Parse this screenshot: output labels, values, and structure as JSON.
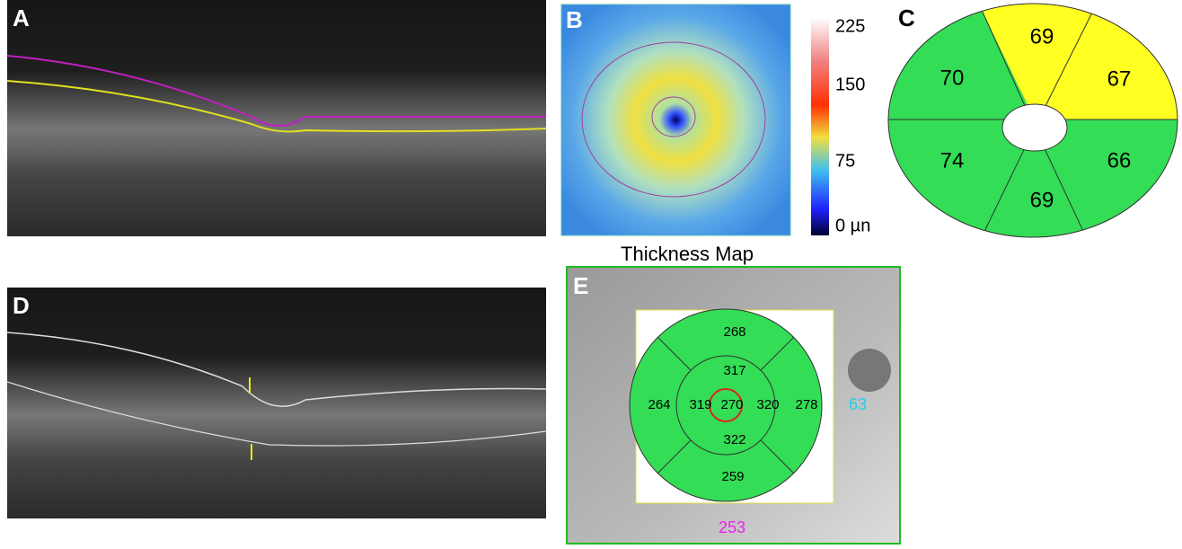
{
  "panel_a": {
    "label": "A"
  },
  "panel_b": {
    "label": "B",
    "colorbar_labels": [
      "225",
      "150",
      "75",
      "0 µn"
    ],
    "caption": "Thickness Map"
  },
  "panel_c": {
    "label": "C",
    "sectors": [
      "69",
      "67",
      "70",
      "74",
      "66",
      "69"
    ]
  },
  "panel_d": {
    "label": "D"
  },
  "panel_e": {
    "label": "E",
    "outer": [
      "268",
      "264",
      "278",
      "259"
    ],
    "inner": [
      "317",
      "319",
      "320",
      "322"
    ],
    "center": "270",
    "side_value": "63",
    "bottom_value": "253"
  }
}
